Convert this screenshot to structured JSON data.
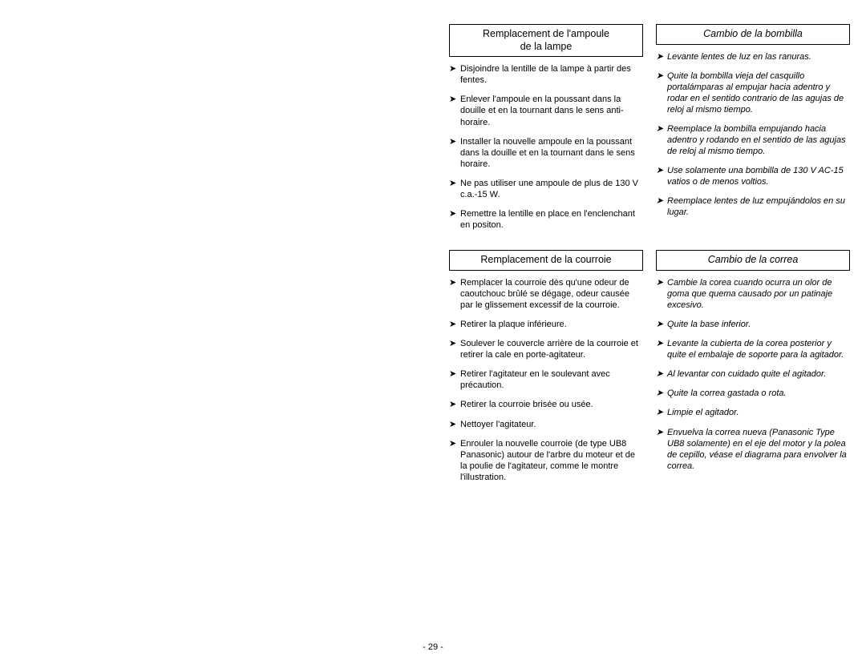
{
  "page_number": "- 29 -",
  "left_page_blank": true,
  "sections": [
    {
      "left": {
        "header": "Remplacement de l'ampoule\nde la lampe",
        "items": [
          "Disjoindre la lentille de la lampe à partir des fentes.",
          "Enlever l'ampoule en la poussant dans la douille et en la tournant dans le sens anti-horaire.",
          "Installer la nouvelle ampoule en la poussant dans la douille et en la tournant dans le sens horaire.",
          "Ne pas utiliser une ampoule de plus de 130 V c.a.-15 W.",
          "Remettre la lentille en place en l'enclenchant en positon."
        ]
      },
      "right": {
        "header": "Cambio de la bombilla",
        "italic": true,
        "items": [
          "Levante lentes de luz en las ranuras.",
          "Quite la bombilla vieja del casquillo portalámparas al empujar hacia adentro y rodar en el sentido contrario de las agujas de reloj al mismo tiempo.",
          "Reemplace la bombilla empujando hacia adentro y rodando en el sentido de las agujas de reloj al mismo tiempo.",
          "Use solamente una bombilla de 130 V AC-15 vatios o de menos voltios.",
          "Reemplace lentes de luz empujándolos en su lugar."
        ]
      }
    },
    {
      "left": {
        "header": "Remplacement de la courroie",
        "items": [
          "Remplacer la courroie dès qu'une odeur de caoutchouc brûlé se dégage, odeur causée par le glissement excessif de la courroie.",
          "Retirer la plaque inférieure.",
          "Soulever le couvercle arrière de la courroie et retirer la cale en porte-agitateur.",
          "Retirer l'agitateur en le soulevant avec précaution.",
          "Retirer la courroie brisée ou usée.",
          "Nettoyer l'agitateur.",
          "Enrouler la nouvelle courroie (de type UB8 Panasonic) autour de l'arbre du moteur et de la poulie de l'agitateur, comme le montre l'illustration."
        ]
      },
      "right": {
        "header": "Cambio de la correa",
        "italic": true,
        "items": [
          "Cambie la corea cuando ocurra un olor de goma que quema causado por un patinaje excesivo.",
          "Quite la base inferior.",
          "Levante la cubierta de la corea posterior y quite el embalaje de soporte para la agitador.",
          "Al levantar con cuidado quite el agitador.",
          "Quite la correa gastada o rota.",
          "Limpie el agitador.",
          "Envuelva la correa nueva (Panasonic Type UB8 solamente) en el eje del motor y la polea de cepillo, véase el diagrama para envolver la correa."
        ]
      }
    }
  ]
}
